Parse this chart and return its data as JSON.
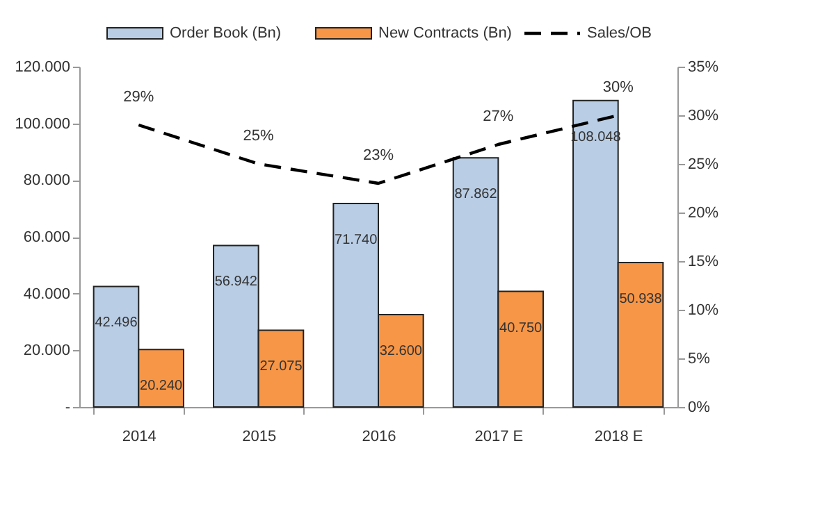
{
  "chart_data": {
    "type": "bar",
    "categories": [
      "2014",
      "2015",
      "2016",
      "2017 E",
      "2018 E"
    ],
    "series": [
      {
        "name": "Order Book (Bn)",
        "type": "bar",
        "color": "#b9cde5",
        "values": [
          42496,
          56942,
          71740,
          87862,
          108048
        ],
        "value_labels": [
          "42.496",
          "56.942",
          "71.740",
          "87.862",
          "108.048"
        ]
      },
      {
        "name": "New Contracts (Bn)",
        "type": "bar",
        "color": "#f79646",
        "values": [
          20240,
          27075,
          32600,
          40750,
          50938
        ],
        "value_labels": [
          "20.240",
          "27.075",
          "32.600",
          "40.750",
          "50.938"
        ]
      },
      {
        "name": "Sales/OB",
        "type": "line",
        "axis": "y2",
        "color": "#000000",
        "line_style": "dashed",
        "values": [
          29,
          25,
          23,
          27,
          30
        ],
        "value_labels": [
          "29%",
          "25%",
          "23%",
          "27%",
          "30%"
        ]
      }
    ],
    "ylim": [
      0,
      120000
    ],
    "yticks": [
      {
        "value": 0,
        "label": "-"
      },
      {
        "value": 20000,
        "label": "20.000"
      },
      {
        "value": 40000,
        "label": "40.000"
      },
      {
        "value": 60000,
        "label": "60.000"
      },
      {
        "value": 80000,
        "label": "80.000"
      },
      {
        "value": 100000,
        "label": "100.000"
      },
      {
        "value": 120000,
        "label": "120.000"
      }
    ],
    "y2lim": [
      0,
      35
    ],
    "y2ticks": [
      {
        "value": 0,
        "label": "0%"
      },
      {
        "value": 5,
        "label": "5%"
      },
      {
        "value": 10,
        "label": "10%"
      },
      {
        "value": 15,
        "label": "15%"
      },
      {
        "value": 20,
        "label": "20%"
      },
      {
        "value": 25,
        "label": "25%"
      },
      {
        "value": 30,
        "label": "30%"
      },
      {
        "value": 35,
        "label": "35%"
      }
    ],
    "grid": false,
    "legend": "top",
    "marker": "none"
  }
}
